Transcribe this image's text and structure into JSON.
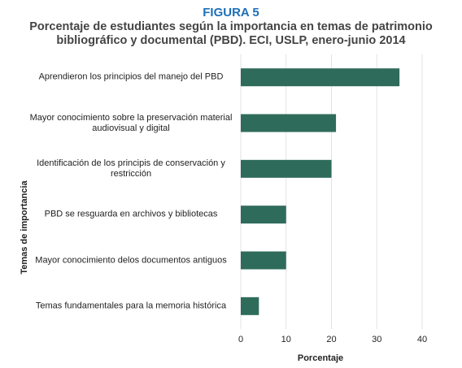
{
  "chart_data": {
    "type": "barh",
    "title": "FIGURA 5",
    "subtitle": "Porcentaje de estudiantes según la importancia en temas de patrimonio bibliográfico y documental (PBD). ECI, USLP, enero-junio 2014",
    "ylabel": "Temas de importancia",
    "xlabel": "Porcentaje",
    "categories": [
      "Aprendieron los principios del manejo del PBD",
      "Mayor conocimiento sobre la preservación material audiovisual y digital",
      "Identificación de los principis de conservación y restricción",
      "PBD se resguarda en archivos y bibliotecas",
      "Mayor conocimiento delos documentos antiguos",
      "Temas fundamentales para la memoria histórica"
    ],
    "values": [
      35,
      21,
      20,
      10,
      10,
      4
    ],
    "color": "#2f6b5b",
    "xlim": [
      0,
      40
    ],
    "xticks": [
      0,
      10,
      20,
      30,
      40
    ],
    "grid": true
  }
}
